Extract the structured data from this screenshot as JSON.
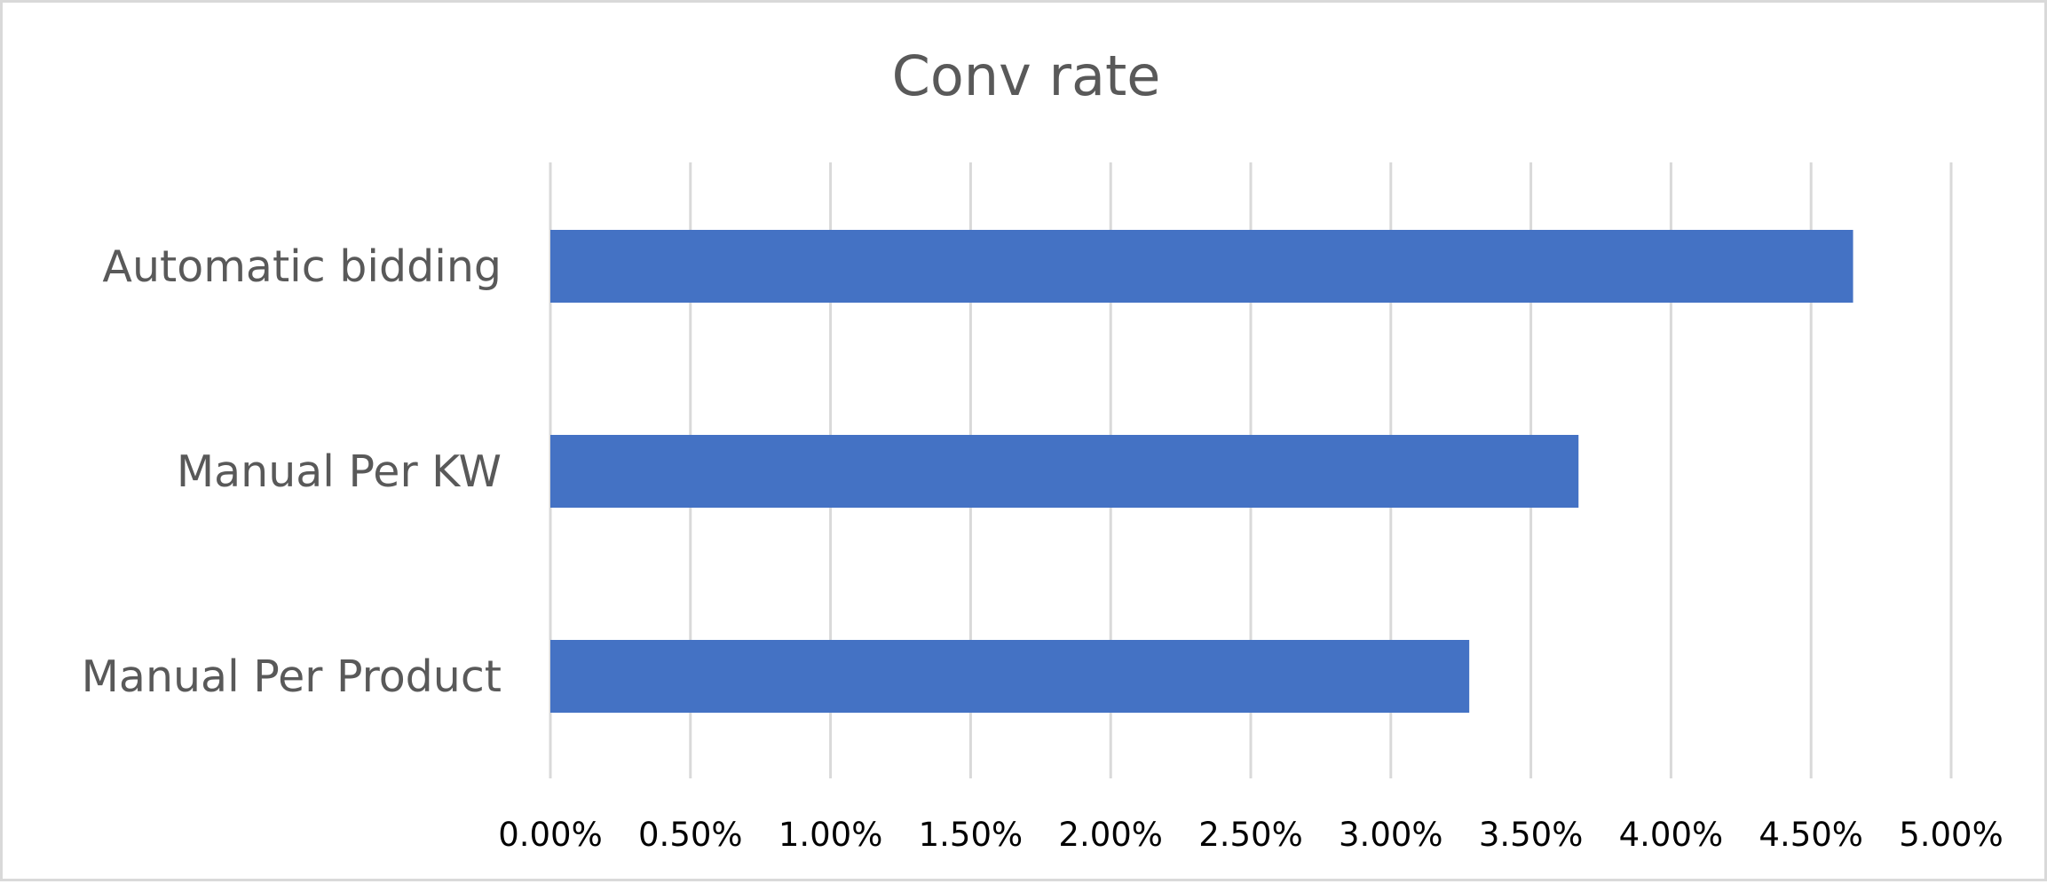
{
  "chart_data": {
    "type": "bar",
    "orientation": "horizontal",
    "title": "Conv rate",
    "xlabel": "",
    "ylabel": "",
    "categories": [
      "Automatic bidding",
      "Manual Per KW",
      "Manual Per Product"
    ],
    "values": [
      0.0465,
      0.0367,
      0.0328
    ],
    "xlim": [
      0,
      0.05
    ],
    "ticks": [
      "0.00%",
      "0.50%",
      "1.00%",
      "1.50%",
      "2.00%",
      "2.50%",
      "3.00%",
      "3.50%",
      "4.00%",
      "4.50%",
      "5.00%"
    ],
    "grid": "vertical",
    "legend": "none",
    "bar_color": "#4472C4",
    "grid_color": "#D9D9D9"
  }
}
